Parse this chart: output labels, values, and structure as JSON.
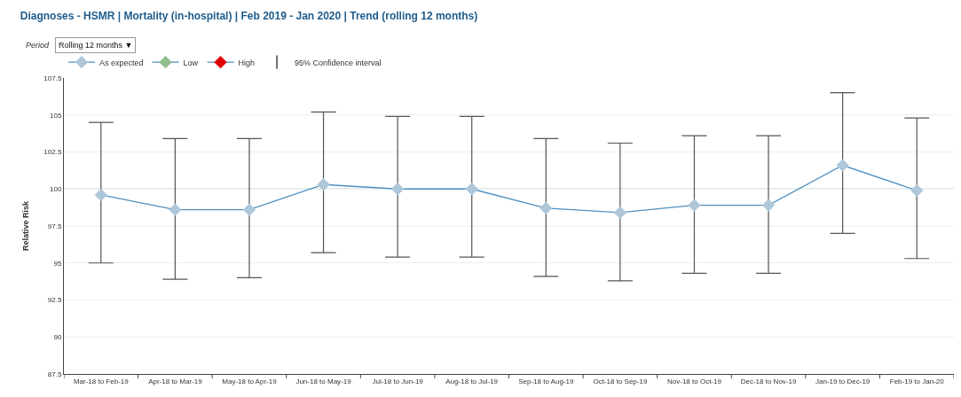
{
  "chart_data": {
    "type": "line",
    "title": "Diagnoses - HSMR | Mortality (in-hospital) | Feb 2019 - Jan 2020 | Trend (rolling 12 months)",
    "annotations": [
      "Period",
      "Rolling 12 months ▼"
    ],
    "ylabel": "Relative Risk",
    "categories": [
      "Mar-18 to Feb-19",
      "Apr-18 to Mar-19",
      "May-18 to Apr-19",
      "Jun-18 to May-19",
      "Jul-18 to Jun-19",
      "Aug-18 to Jul-19",
      "Sep-18 to Aug-19",
      "Oct-18 to Sep-19",
      "Nov-18 to Oct-19",
      "Dec-18 to Nov-19",
      "Jan-19 to Dec-19",
      "Feb-19 to Jan-20"
    ],
    "series": [
      {
        "name": "As expected",
        "color": "#aec7d9",
        "values": [
          99.6,
          98.6,
          98.6,
          100.3,
          100.0,
          100.0,
          98.7,
          98.4,
          98.9,
          98.9,
          101.6,
          99.9
        ],
        "errors": [
          [
            95.0,
            104.5
          ],
          [
            93.9,
            103.4
          ],
          [
            94.0,
            103.4
          ],
          [
            95.7,
            105.2
          ],
          [
            95.4,
            104.9
          ],
          [
            95.4,
            104.9
          ],
          [
            94.1,
            103.4
          ],
          [
            93.8,
            103.1
          ],
          [
            94.3,
            103.6
          ],
          [
            94.3,
            103.6
          ],
          [
            97.0,
            106.5
          ],
          [
            95.3,
            104.8
          ]
        ]
      },
      {
        "name": "Low",
        "color": "#8fbf8f",
        "values": [
          null,
          null,
          null,
          null,
          null,
          null,
          null,
          null,
          null,
          null,
          null,
          null
        ]
      },
      {
        "name": "High",
        "color": "#e00000",
        "values": [
          null,
          null,
          null,
          null,
          null,
          null,
          null,
          null,
          null,
          null,
          null,
          null
        ]
      },
      {
        "name": "95% Confidence interval",
        "type": "other",
        "color": "#444444",
        "values": [
          null,
          null,
          null,
          null,
          null,
          null,
          null,
          null,
          null,
          null,
          null,
          null
        ]
      }
    ],
    "ylim": [
      87.5,
      107.5
    ],
    "yticks": [
      87.5,
      90,
      92.5,
      95,
      97.5,
      100,
      102.5,
      105,
      107.5
    ],
    "ref_lines": [
      {
        "axis": "y",
        "value": 100,
        "color": "#7fbfbf"
      }
    ],
    "grid": "y",
    "legend": "top left",
    "marker": "diamond",
    "line_style": "solid"
  }
}
